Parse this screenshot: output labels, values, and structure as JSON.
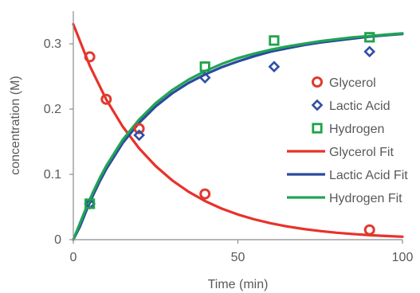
{
  "chart_data": {
    "type": "scatter",
    "xlabel": "Time (min)",
    "ylabel": "concentration (M)",
    "xlim": [
      0,
      100
    ],
    "ylim": [
      0,
      0.35
    ],
    "x_ticks": [
      0,
      50,
      100
    ],
    "y_ticks": [
      0,
      0.1,
      0.2,
      0.3
    ],
    "x_tick_labels": [
      "0",
      "50",
      "100"
    ],
    "y_tick_labels": [
      "0",
      "0.1",
      "0.2",
      "0.3"
    ],
    "grid": false,
    "legend_position": "right",
    "series": [
      {
        "name": "Glycerol",
        "kind": "markers",
        "marker": "circle",
        "color": "#e03a2f",
        "x": [
          5,
          10,
          20,
          40,
          90
        ],
        "y": [
          0.28,
          0.215,
          0.17,
          0.07,
          0.015
        ]
      },
      {
        "name": "Lactic Acid",
        "kind": "markers",
        "marker": "diamond",
        "color": "#2e4fa5",
        "x": [
          5,
          20,
          40,
          61,
          90
        ],
        "y": [
          0.055,
          0.16,
          0.248,
          0.265,
          0.288
        ]
      },
      {
        "name": "Hydrogen",
        "kind": "markers",
        "marker": "square",
        "color": "#1ea34a",
        "x": [
          5,
          40,
          61,
          90
        ],
        "y": [
          0.055,
          0.265,
          0.305,
          0.31
        ]
      },
      {
        "name": "Glycerol Fit",
        "kind": "line",
        "color": "#e8322a",
        "x": [
          0,
          5,
          10,
          15,
          20,
          25,
          30,
          35,
          40,
          45,
          50,
          55,
          60,
          65,
          70,
          75,
          80,
          85,
          90,
          95,
          100
        ],
        "y": [
          0.33,
          0.2662,
          0.2147,
          0.1733,
          0.1398,
          0.1128,
          0.091,
          0.0734,
          0.0592,
          0.0477,
          0.0385,
          0.0311,
          0.0251,
          0.0202,
          0.0163,
          0.0132,
          0.0106,
          0.0086,
          0.0069,
          0.0056,
          0.0045
        ]
      },
      {
        "name": "Lactic Acid Fit",
        "kind": "line",
        "color": "#2a4a9e",
        "x": [
          0,
          2,
          4,
          6,
          8,
          10,
          15,
          20,
          25,
          30,
          35,
          40,
          45,
          50,
          55,
          60,
          65,
          70,
          75,
          80,
          85,
          90,
          95,
          100
        ],
        "y": [
          0,
          0.02,
          0.045,
          0.068,
          0.089,
          0.108,
          0.148,
          0.179,
          0.204,
          0.224,
          0.24,
          0.253,
          0.264,
          0.273,
          0.281,
          0.288,
          0.293,
          0.298,
          0.302,
          0.305,
          0.308,
          0.311,
          0.313,
          0.315
        ]
      },
      {
        "name": "Hydrogen Fit",
        "kind": "line",
        "color": "#22a356",
        "x": [
          0,
          2,
          4,
          6,
          8,
          10,
          15,
          20,
          25,
          30,
          35,
          40,
          45,
          50,
          55,
          60,
          65,
          70,
          75,
          80,
          85,
          90,
          95,
          100
        ],
        "y": [
          0,
          0.025,
          0.05,
          0.073,
          0.094,
          0.113,
          0.153,
          0.184,
          0.209,
          0.229,
          0.245,
          0.258,
          0.269,
          0.278,
          0.285,
          0.291,
          0.296,
          0.3,
          0.304,
          0.307,
          0.31,
          0.312,
          0.314,
          0.316
        ]
      }
    ]
  }
}
